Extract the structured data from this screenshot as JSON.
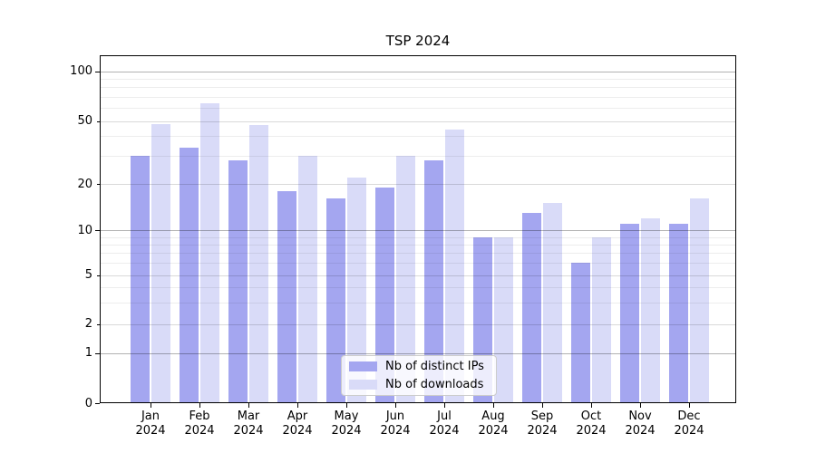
{
  "figure": {
    "title": "TSP 2024"
  },
  "chart_data": {
    "type": "bar",
    "title": "TSP 2024",
    "categories": [
      "Jan 2024",
      "Feb 2024",
      "Mar 2024",
      "Apr 2024",
      "May 2024",
      "Jun 2024",
      "Jul 2024",
      "Aug 2024",
      "Sep 2024",
      "Oct 2024",
      "Nov 2024",
      "Dec 2024"
    ],
    "series": [
      {
        "name": "Nb of distinct IPs",
        "color": "#a4a6f0",
        "values": [
          30,
          34,
          28,
          18,
          16,
          19,
          28,
          9,
          13,
          6,
          11,
          11
        ]
      },
      {
        "name": "Nb of downloads",
        "color": "#d9dbf8",
        "values": [
          48,
          64,
          47,
          30,
          22,
          30,
          44,
          9,
          15,
          9,
          12,
          16
        ]
      }
    ],
    "xlabel": "",
    "ylabel": "",
    "yscale": "log-like with linear segment below 1 (labeled ticks 0,1,2,5,10,20,50,100)",
    "yticks_labeled": [
      0,
      1,
      2,
      5,
      10,
      20,
      50,
      100
    ],
    "yticks_major": [
      1,
      10,
      100
    ],
    "yticks_minor_unlabeled": [
      3,
      4,
      6,
      7,
      8,
      9,
      30,
      40,
      60,
      70,
      80,
      90
    ],
    "ylim": [
      0,
      125
    ],
    "grid": true,
    "legend_position": "lower center",
    "legend_entries": [
      "Nb of distinct IPs",
      "Nb of downloads"
    ]
  },
  "colors": {
    "bar_distinct_ips": "#a4a6f0",
    "bar_downloads": "#d9dbf8",
    "axis": "#000000",
    "grid_major": "rgba(0,0,0,0.30)",
    "grid_labeled_minor": "rgba(0,0,0,0.15)",
    "grid_minor": "rgba(0,0,0,0.07)",
    "legend_border": "#cccccc",
    "text": "#000000"
  }
}
